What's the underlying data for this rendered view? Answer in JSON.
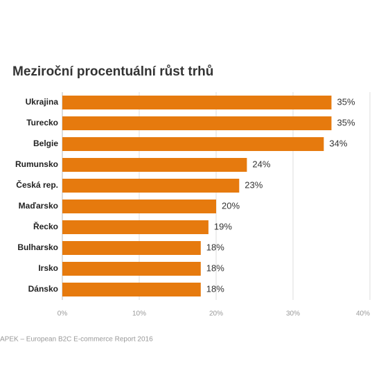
{
  "chart_data": {
    "type": "hbar",
    "title": "Meziroční procentuální růst trhů",
    "categories": [
      "Ukrajina",
      "Turecko",
      "Belgie",
      "Rumunsko",
      "Česká rep.",
      "Maďarsko",
      "Řecko",
      "Bulharsko",
      "Irsko",
      "Dánsko"
    ],
    "values": [
      35,
      35,
      34,
      24,
      23,
      20,
      19,
      18,
      18,
      18
    ],
    "value_labels": [
      "35%",
      "35%",
      "34%",
      "24%",
      "23%",
      "20%",
      "19%",
      "18%",
      "18%",
      "18%"
    ],
    "color": "#e67a0e",
    "xlim": [
      0,
      40
    ],
    "xticks": [
      {
        "value": 0,
        "label": "0%"
      },
      {
        "value": 10,
        "label": "10%"
      },
      {
        "value": 20,
        "label": "20%"
      },
      {
        "value": 30,
        "label": "30%"
      },
      {
        "value": 40,
        "label": "40%"
      }
    ],
    "grid": true,
    "source": "APEK – European B2C E-commerce Report 2016"
  }
}
